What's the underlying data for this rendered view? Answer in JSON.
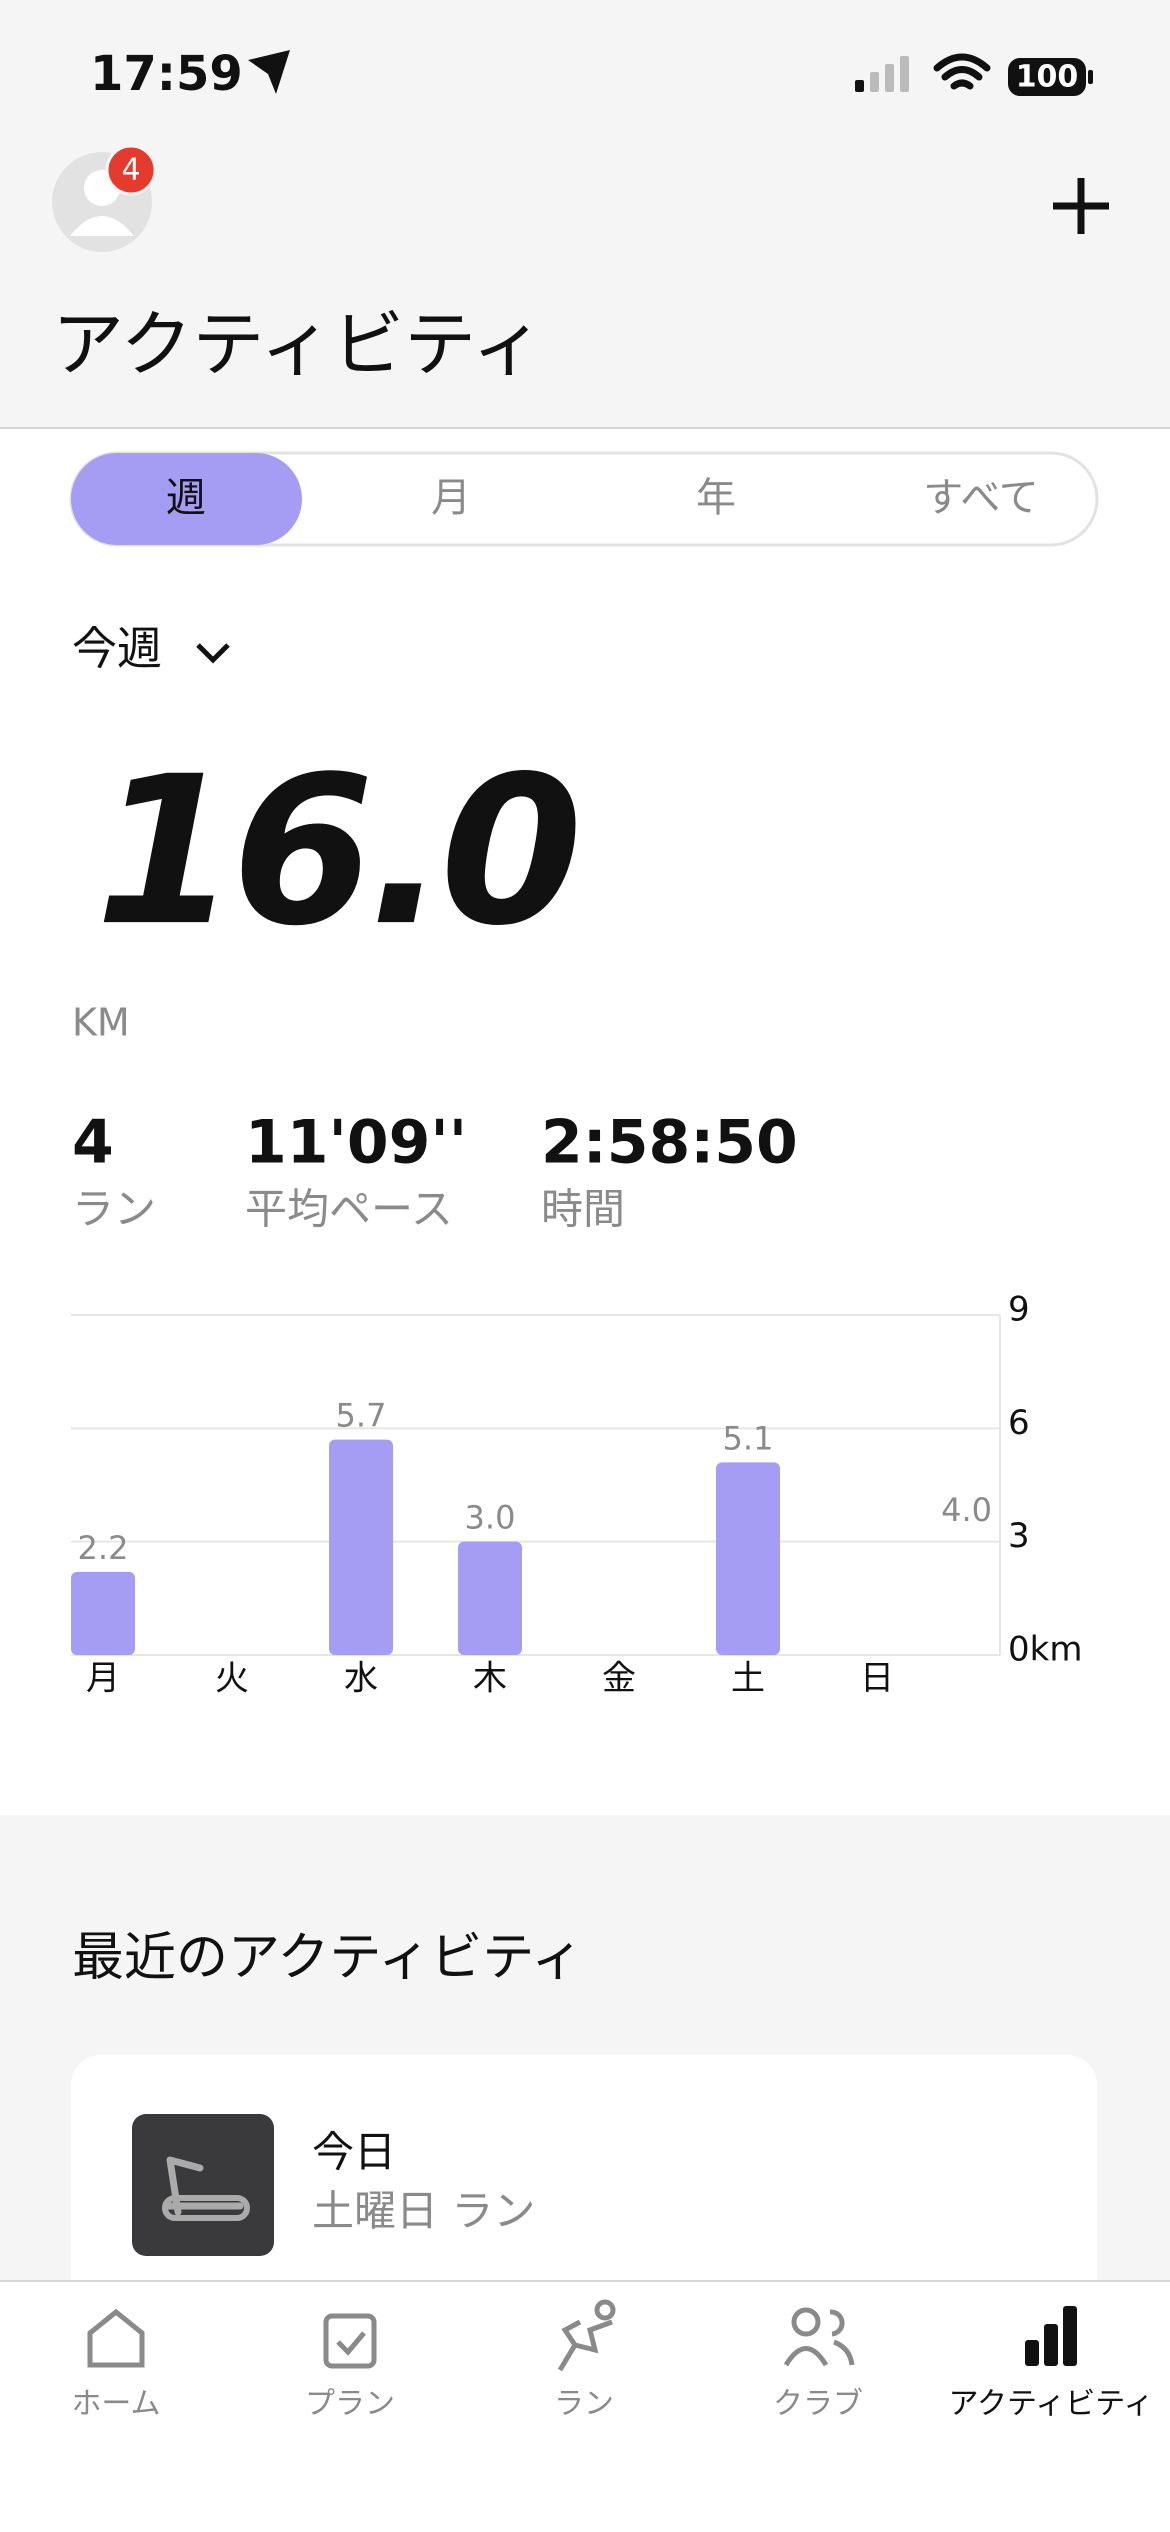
{
  "status_bar": {
    "time": "17:59",
    "battery": "100"
  },
  "header": {
    "badge": "4",
    "title": "アクティビティ"
  },
  "tabs": [
    "週",
    "月",
    "年",
    "すべて"
  ],
  "period": "今週",
  "summary": {
    "distance": "16.0",
    "unit": "KM",
    "stats": [
      {
        "value": "4",
        "label": "ラン"
      },
      {
        "value": "11'09''",
        "label": "平均ペース"
      },
      {
        "value": "2:58:50",
        "label": "時間"
      }
    ]
  },
  "chart_data": {
    "type": "bar",
    "categories": [
      "月",
      "火",
      "水",
      "木",
      "金",
      "土",
      "日"
    ],
    "values": [
      2.2,
      null,
      5.7,
      3.0,
      null,
      5.1,
      null
    ],
    "value_labels": [
      "2.2",
      null,
      "5.7",
      "3.0",
      null,
      "5.1",
      null
    ],
    "color": "#a59cf3",
    "ylim": [
      0,
      9
    ],
    "yticks": [
      {
        "value": 0,
        "label": "0km"
      },
      3,
      6,
      9
    ],
    "grid": true,
    "annotation": {
      "value": 4.0,
      "label": "4.0"
    }
  },
  "recent": {
    "title": "最近のアクティビティ",
    "activities": [
      {
        "date": "今日",
        "description": "土曜日 ラン"
      }
    ]
  },
  "tab_bar": [
    "ホーム",
    "プラン",
    "ラン",
    "クラブ",
    "アクティビティ"
  ]
}
